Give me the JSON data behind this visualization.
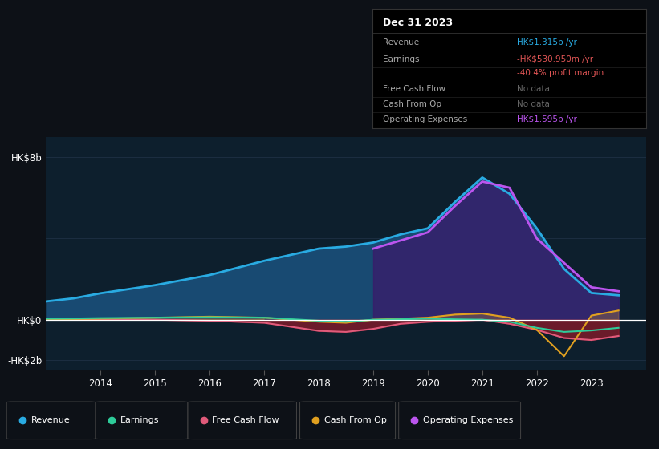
{
  "bg_color": "#0d1117",
  "plot_bg_color": "#0d1f2d",
  "years": [
    2013.0,
    2013.5,
    2014.0,
    2015.0,
    2016.0,
    2017.0,
    2018.0,
    2018.5,
    2019.0,
    2019.5,
    2020.0,
    2020.5,
    2021.0,
    2021.5,
    2022.0,
    2022.5,
    2023.0,
    2023.5
  ],
  "revenue": [
    0.9,
    1.05,
    1.3,
    1.7,
    2.2,
    2.9,
    3.5,
    3.6,
    3.8,
    4.2,
    4.5,
    5.8,
    7.0,
    6.2,
    4.5,
    2.5,
    1.315,
    1.2
  ],
  "earnings": [
    0.05,
    0.06,
    0.08,
    0.1,
    0.12,
    0.1,
    -0.05,
    -0.1,
    0.0,
    0.02,
    0.05,
    0.02,
    0.0,
    -0.1,
    -0.4,
    -0.6,
    -0.531,
    -0.4
  ],
  "free_cash_flow": [
    0.0,
    0.01,
    0.02,
    0.0,
    -0.05,
    -0.15,
    -0.55,
    -0.6,
    -0.45,
    -0.2,
    -0.1,
    -0.05,
    0.0,
    -0.2,
    -0.5,
    -0.9,
    -1.0,
    -0.8
  ],
  "cash_from_op": [
    0.0,
    0.03,
    0.05,
    0.1,
    0.15,
    0.1,
    -0.1,
    -0.15,
    0.0,
    0.05,
    0.1,
    0.25,
    0.3,
    0.1,
    -0.5,
    -1.8,
    0.2,
    0.45
  ],
  "op_expenses_x": [
    2019.0,
    2019.5,
    2020.0,
    2020.5,
    2021.0,
    2021.5,
    2022.0,
    2022.5,
    2023.0,
    2023.5
  ],
  "op_expenses_y": [
    3.5,
    3.9,
    4.3,
    5.6,
    6.8,
    6.5,
    4.0,
    2.8,
    1.595,
    1.4
  ],
  "revenue_color": "#29abe2",
  "revenue_fill": "#1a4f7a",
  "earnings_color": "#2ecc9a",
  "fcf_color": "#e05a7a",
  "fcf_fill": "#8b1a2a",
  "cashop_color": "#e0a020",
  "opex_color": "#bb55ee",
  "opex_fill": "#3a1a6a",
  "zero_line_color": "#ffffff",
  "grid_color": "#1e3044",
  "ylim": [
    -2.5,
    9.0
  ],
  "xlim": [
    2013.0,
    2024.0
  ],
  "info_box": {
    "title": "Dec 31 2023",
    "rows": [
      {
        "label": "Revenue",
        "value": "HK$1.315b /yr",
        "value_color": "#29abe2"
      },
      {
        "label": "Earnings",
        "value": "-HK$530.950m /yr",
        "value_color": "#e05555"
      },
      {
        "label": "",
        "value": "-40.4% profit margin",
        "value_color": "#e05555"
      },
      {
        "label": "Free Cash Flow",
        "value": "No data",
        "value_color": "#666666"
      },
      {
        "label": "Cash From Op",
        "value": "No data",
        "value_color": "#666666"
      },
      {
        "label": "Operating Expenses",
        "value": "HK$1.595b /yr",
        "value_color": "#bb55ee"
      }
    ]
  },
  "legend": [
    {
      "label": "Revenue",
      "color": "#29abe2"
    },
    {
      "label": "Earnings",
      "color": "#2ecc9a"
    },
    {
      "label": "Free Cash Flow",
      "color": "#e05a7a"
    },
    {
      "label": "Cash From Op",
      "color": "#e0a020"
    },
    {
      "label": "Operating Expenses",
      "color": "#bb55ee"
    }
  ]
}
